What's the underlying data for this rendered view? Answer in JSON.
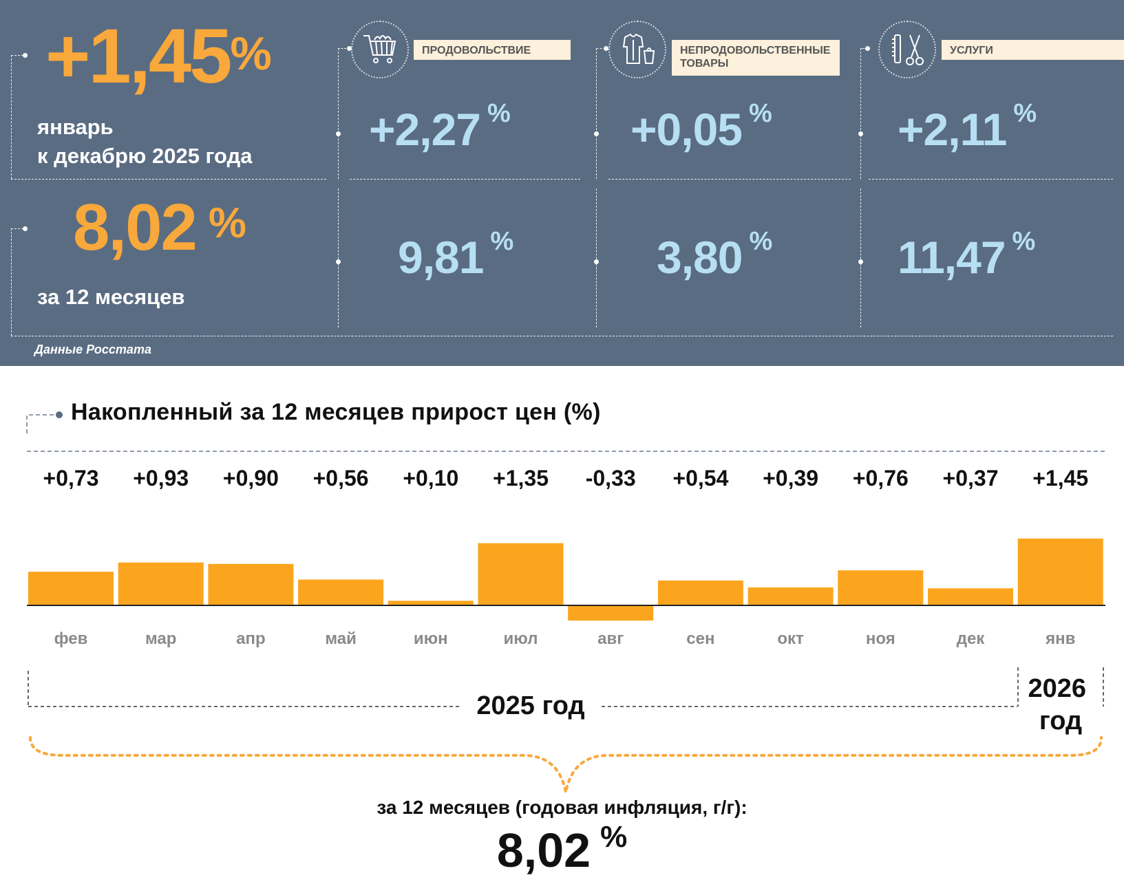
{
  "summary": {
    "monthly_value": "+1,45",
    "monthly_unit": "%",
    "monthly_caption_line1": "январь",
    "monthly_caption_line2": "к декабрю 2025 года",
    "annual_value": "8,02",
    "annual_unit": "%",
    "annual_caption": "за 12 месяцев",
    "source": "Данные Росстата"
  },
  "categories": [
    {
      "label": "ПРОДОВОЛЬСТВИЕ",
      "icon": "shopping-cart-icon",
      "monthly": "+2,27",
      "annual": "9,81",
      "unit": "%"
    },
    {
      "label_line1": "НЕПРОДОВОЛЬСТВЕННЫЕ",
      "label_line2": "ТОВАРЫ",
      "icon": "clothing-icon",
      "monthly": "+0,05",
      "annual": "3,80",
      "unit": "%"
    },
    {
      "label": "УСЛУГИ",
      "icon": "comb-scissors-icon",
      "monthly": "+2,11",
      "annual": "11,47",
      "unit": "%"
    }
  ],
  "colors": {
    "panel": "#5a6c82",
    "orange": "#f9a83b",
    "light_blue": "#b7dff3",
    "bar": "#fba51f"
  },
  "chart_data": {
    "type": "bar",
    "title": "Накопленный за 12 месяцев прирост цен (%)",
    "categories": [
      "фев",
      "мар",
      "апр",
      "май",
      "июн",
      "июл",
      "авг",
      "сен",
      "окт",
      "ноя",
      "дек",
      "янв"
    ],
    "values": [
      0.73,
      0.93,
      0.9,
      0.56,
      0.1,
      1.35,
      -0.33,
      0.54,
      0.39,
      0.76,
      0.37,
      1.45
    ],
    "value_labels": [
      "+0,73",
      "+0,93",
      "+0,90",
      "+0,56",
      "+0,10",
      "+1,35",
      "-0,33",
      "+0,54",
      "+0,39",
      "+0,76",
      "+0,37",
      "+1,45"
    ],
    "grid": false,
    "year_labels": [
      "2025 год",
      "2026 год"
    ],
    "footer_caption": "за 12 месяцев (годовая инфляция, г/г):",
    "footer_value": "8,02",
    "footer_unit": "%"
  }
}
